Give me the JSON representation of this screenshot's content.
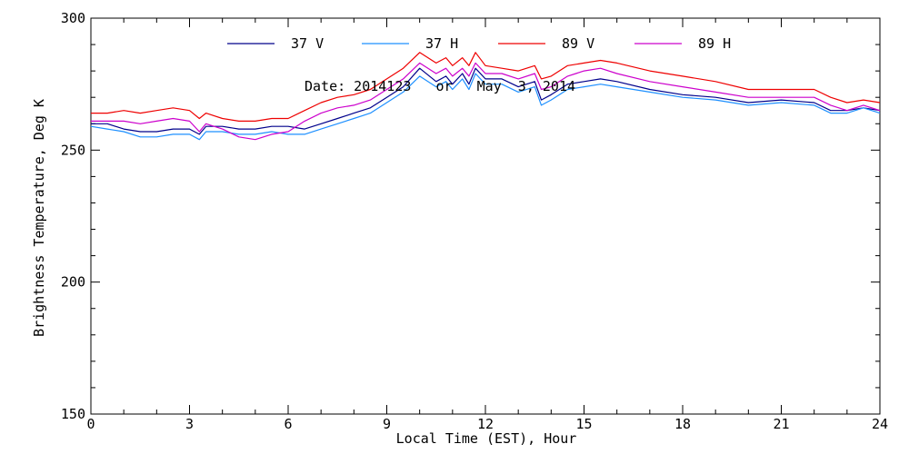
{
  "chart_data": {
    "type": "line",
    "title": "",
    "annotation": "Date: 2014123   or   May  3, 2014",
    "xlabel": "Local Time (EST), Hour",
    "ylabel": "Brightness Temperature, Deg K",
    "xlim": [
      0,
      24
    ],
    "ylim": [
      150,
      300
    ],
    "xticks": [
      0,
      3,
      6,
      9,
      12,
      15,
      18,
      21,
      24
    ],
    "yticks": [
      150,
      200,
      250,
      300
    ],
    "x_minor_step": 1,
    "y_minor_step": 10,
    "grid": false,
    "legend_position": "top",
    "x": [
      0,
      0.5,
      1,
      1.5,
      2,
      2.5,
      3,
      3.3,
      3.5,
      4,
      4.5,
      5,
      5.5,
      6,
      6.5,
      7,
      7.5,
      8,
      8.5,
      9,
      9.5,
      10,
      10.5,
      10.8,
      11,
      11.3,
      11.5,
      11.7,
      12,
      12.5,
      13,
      13.5,
      13.7,
      14,
      14.5,
      15,
      15.5,
      16,
      17,
      18,
      19,
      20,
      21,
      22,
      22.5,
      23,
      23.5,
      24
    ],
    "series": [
      {
        "name": "37 V",
        "color": "#00008b",
        "values": [
          260,
          260,
          258,
          257,
          257,
          258,
          258,
          256,
          259,
          259,
          258,
          258,
          259,
          259,
          258,
          260,
          262,
          264,
          266,
          270,
          274,
          281,
          276,
          278,
          275,
          279,
          275,
          281,
          277,
          277,
          274,
          276,
          269,
          271,
          275,
          276,
          277,
          276,
          273,
          271,
          270,
          268,
          269,
          268,
          265,
          265,
          266,
          265
        ]
      },
      {
        "name": "37 H",
        "color": "#1e90ff",
        "values": [
          259,
          258,
          257,
          255,
          255,
          256,
          256,
          254,
          257,
          257,
          256,
          256,
          257,
          256,
          256,
          258,
          260,
          262,
          264,
          268,
          272,
          278,
          274,
          276,
          273,
          277,
          273,
          279,
          275,
          275,
          272,
          274,
          267,
          269,
          273,
          274,
          275,
          274,
          272,
          270,
          269,
          267,
          268,
          267,
          264,
          264,
          266,
          264
        ]
      },
      {
        "name": "89 V",
        "color": "#ee0000",
        "values": [
          264,
          264,
          265,
          264,
          265,
          266,
          265,
          262,
          264,
          262,
          261,
          261,
          262,
          262,
          265,
          268,
          270,
          271,
          273,
          277,
          281,
          287,
          283,
          285,
          282,
          285,
          282,
          287,
          282,
          281,
          280,
          282,
          277,
          278,
          282,
          283,
          284,
          283,
          280,
          278,
          276,
          273,
          273,
          273,
          270,
          268,
          269,
          268
        ]
      },
      {
        "name": "89 H",
        "color": "#cc00cc",
        "values": [
          261,
          261,
          261,
          260,
          261,
          262,
          261,
          257,
          260,
          258,
          255,
          254,
          256,
          257,
          261,
          264,
          266,
          267,
          269,
          273,
          277,
          283,
          279,
          281,
          278,
          281,
          278,
          283,
          279,
          279,
          277,
          279,
          273,
          274,
          278,
          280,
          281,
          279,
          276,
          274,
          272,
          270,
          270,
          270,
          267,
          265,
          267,
          265
        ]
      }
    ]
  }
}
